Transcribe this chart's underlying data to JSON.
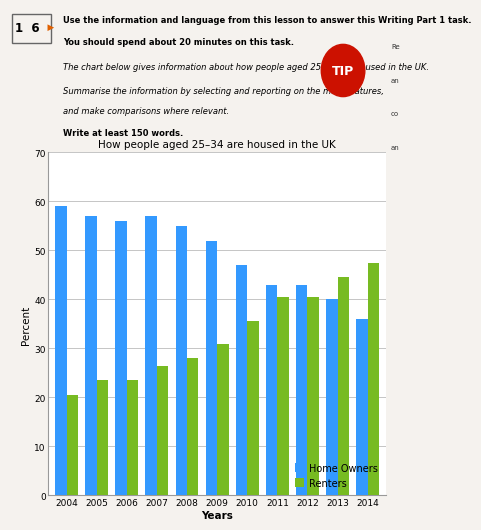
{
  "title": "How people aged 25–34 are housed in the UK",
  "xlabel": "Years",
  "ylabel": "Percent",
  "years": [
    2004,
    2005,
    2006,
    2007,
    2008,
    2009,
    2010,
    2011,
    2012,
    2013,
    2014
  ],
  "home_owners": [
    59,
    57,
    56,
    57,
    55,
    52,
    47,
    43,
    43,
    40,
    36
  ],
  "renters": [
    20.5,
    23.5,
    23.5,
    26.5,
    28,
    31,
    35.5,
    40.5,
    40.5,
    44.5,
    47.5
  ],
  "home_owners_color": "#3399ff",
  "renters_color": "#77bb22",
  "ylim": [
    0,
    70
  ],
  "yticks": [
    0,
    10,
    20,
    30,
    40,
    50,
    60,
    70
  ],
  "legend_home_owners": "Home Owners",
  "legend_renters": "Renters",
  "bg_color": "#ffffff",
  "grid_color": "#bbbbbb",
  "bar_width": 0.38,
  "title_fontsize": 7.5,
  "axis_label_fontsize": 7.5,
  "tick_fontsize": 6.5,
  "legend_fontsize": 7,
  "top_bold_line1": "Use the information and language from this lesson to answer this Writing Part 1 task.",
  "top_bold_line2": "You should spend about 20 minutes on this task.",
  "italic_line1": "The chart below gives information about how people aged 25–34 are housed in the UK.",
  "italic_line2": "Summarise the information by selecting and reporting on the main features,",
  "italic_line3": "and make comparisons where relevant.",
  "bottom_text": "Write at least 150 words.",
  "tip_text": "TIP"
}
